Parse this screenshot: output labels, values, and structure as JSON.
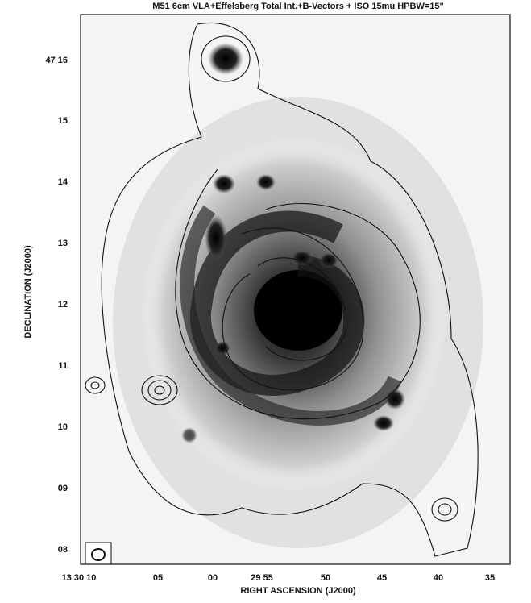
{
  "figure": {
    "title": "M51 6cm VLA+Effelsberg Total Int.+B-Vectors + ISO 15mu HPBW=15\"",
    "x_label": "RIGHT ASCENSION (J2000)",
    "y_label": "DECLINATION (J2000)",
    "x_ticks": [
      "13 30 10",
      "05",
      "00",
      "29 55",
      "50",
      "45",
      "40",
      "35"
    ],
    "y_ticks": [
      "47 16",
      "15",
      "14",
      "13",
      "12",
      "11",
      "10",
      "09",
      "08"
    ]
  }
}
